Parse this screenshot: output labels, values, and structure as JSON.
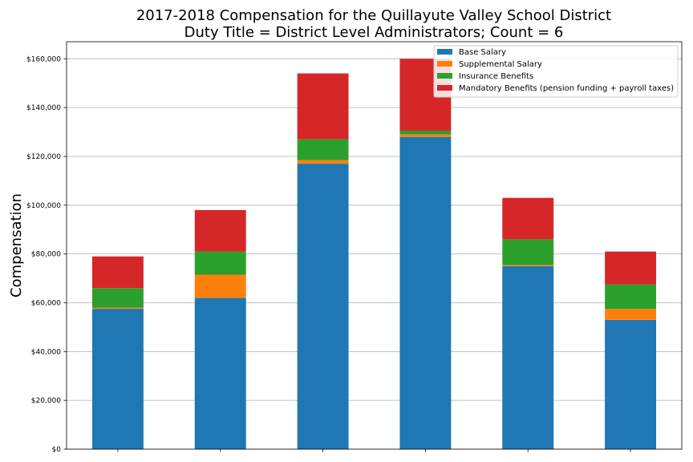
{
  "chart_data": {
    "type": "bar",
    "stacked": true,
    "title": "2017-2018 Compensation for the Quillayute Valley School District",
    "subtitle": "Duty Title = District Level Administrators; Count = 6",
    "xlabel": "",
    "ylabel": "Compensation",
    "ylim": [
      0,
      167000
    ],
    "yticks": [
      0,
      20000,
      40000,
      60000,
      80000,
      100000,
      120000,
      140000,
      160000
    ],
    "ytick_labels": [
      "$0",
      "$20,000",
      "$40,000",
      "$60,000",
      "$80,000",
      "$100,000",
      "$120,000",
      "$140,000",
      "$160,000"
    ],
    "categories": [
      "",
      "",
      "",
      "",
      "",
      ""
    ],
    "grid": "horizontal",
    "legend_position": "top-right",
    "series": [
      {
        "name": "Base Salary",
        "color": "#1f77b4",
        "values": [
          57500,
          62000,
          117000,
          128000,
          75000,
          53000
        ]
      },
      {
        "name": "Supplemental Salary",
        "color": "#ff7f0e",
        "values": [
          500,
          9500,
          1500,
          1000,
          500,
          4500
        ]
      },
      {
        "name": "Insurance Benefits",
        "color": "#2ca02c",
        "values": [
          8000,
          9500,
          8500,
          1500,
          10500,
          10000
        ]
      },
      {
        "name": "Mandatory Benefits (pension funding + payroll taxes)",
        "color": "#d62728",
        "values": [
          13000,
          17000,
          27000,
          29500,
          17000,
          13500
        ]
      }
    ]
  }
}
